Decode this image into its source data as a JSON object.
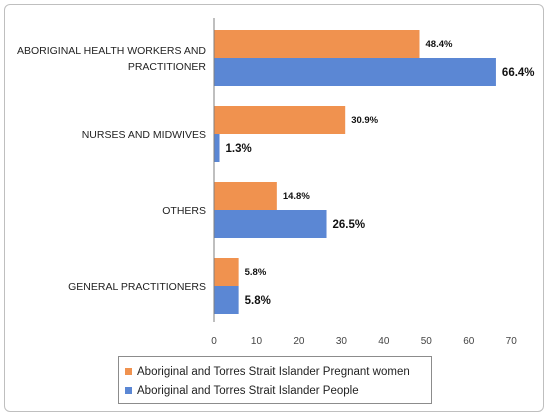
{
  "chart_data": {
    "type": "bar",
    "orientation": "horizontal",
    "categories": [
      "ABORIGINAL HEALTH WORKERS AND PRACTITIONER",
      "NURSES AND MIDWIVES",
      "OTHERS",
      "GENERAL PRACTITIONERS"
    ],
    "category_lines": [
      [
        "ABORIGINAL HEALTH WORKERS AND",
        "PRACTITIONER"
      ],
      [
        "NURSES AND MIDWIVES"
      ],
      [
        "OTHERS"
      ],
      [
        "GENERAL PRACTITIONERS"
      ]
    ],
    "series": [
      {
        "name": "Aboriginal and Torres Strait Islander Pregnant women",
        "color": "#f0924f",
        "values": [
          48.4,
          30.9,
          14.8,
          5.8
        ],
        "labels": [
          "48.4%",
          "30.9%",
          "14.8%",
          "5.8%"
        ]
      },
      {
        "name": "Aboriginal and Torres Strait Islander People",
        "color": "#5b87d4",
        "values": [
          66.4,
          1.3,
          26.5,
          5.8
        ],
        "labels": [
          "66.4%",
          "1.3%",
          "26.5%",
          "5.8%"
        ]
      }
    ],
    "xlim": [
      0,
      70
    ],
    "xticks": [
      0,
      10,
      20,
      30,
      40,
      50,
      60,
      70
    ],
    "title": "",
    "xlabel": "",
    "ylabel": "",
    "grid": false,
    "legend_position": "bottom"
  }
}
